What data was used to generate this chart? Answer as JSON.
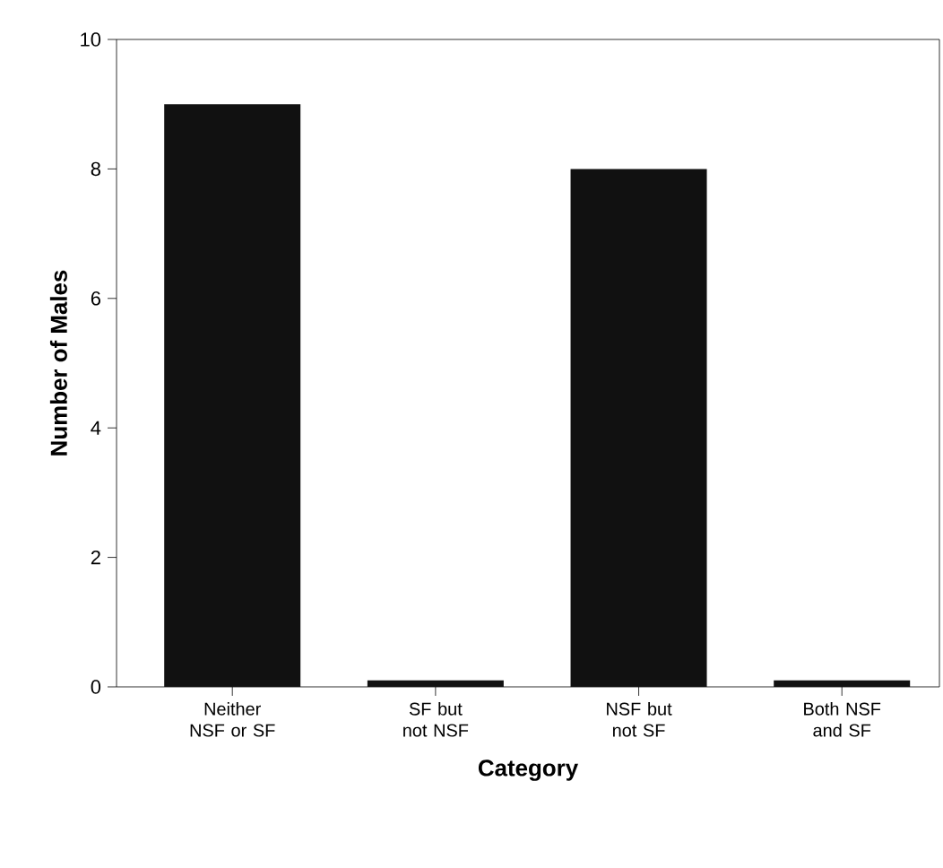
{
  "chart_data": {
    "type": "bar",
    "xlabel": "Category",
    "ylabel": "Number of Males",
    "categories": [
      "Neither NSF or SF",
      "SF but not NSF",
      "NSF but not SF",
      "Both NSF and SF"
    ],
    "values": [
      9,
      0.1,
      8,
      0.1
    ],
    "color": "#111111",
    "ylim": [
      0,
      10
    ],
    "yticks": [
      0,
      2,
      4,
      6,
      8,
      10
    ]
  }
}
